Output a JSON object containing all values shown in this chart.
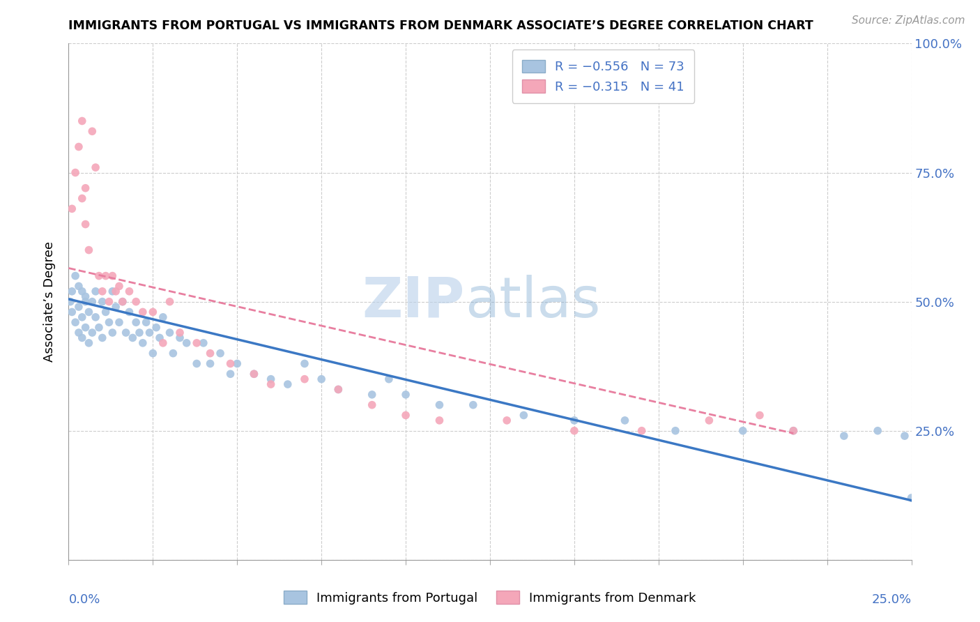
{
  "title": "IMMIGRANTS FROM PORTUGAL VS IMMIGRANTS FROM DENMARK ASSOCIATE’S DEGREE CORRELATION CHART",
  "source": "Source: ZipAtlas.com",
  "ylabel": "Associate’s Degree",
  "color_portugal": "#a8c4e0",
  "color_denmark": "#f4a7b9",
  "color_portugal_line": "#3b78c4",
  "color_denmark_line": "#e87fa0",
  "watermark_zip": "ZIP",
  "watermark_atlas": "atlas",
  "xlim": [
    0.0,
    0.25
  ],
  "ylim": [
    0.0,
    1.0
  ],
  "portugal_x": [
    0.0005,
    0.001,
    0.001,
    0.002,
    0.002,
    0.003,
    0.003,
    0.003,
    0.004,
    0.004,
    0.004,
    0.005,
    0.005,
    0.005,
    0.006,
    0.006,
    0.007,
    0.007,
    0.008,
    0.008,
    0.009,
    0.01,
    0.01,
    0.011,
    0.012,
    0.013,
    0.013,
    0.014,
    0.015,
    0.016,
    0.017,
    0.018,
    0.019,
    0.02,
    0.021,
    0.022,
    0.023,
    0.024,
    0.025,
    0.026,
    0.027,
    0.028,
    0.03,
    0.031,
    0.033,
    0.035,
    0.038,
    0.04,
    0.042,
    0.045,
    0.048,
    0.05,
    0.055,
    0.06,
    0.065,
    0.07,
    0.075,
    0.08,
    0.09,
    0.095,
    0.1,
    0.11,
    0.12,
    0.135,
    0.15,
    0.165,
    0.18,
    0.2,
    0.215,
    0.23,
    0.24,
    0.248,
    0.25
  ],
  "portugal_y": [
    0.5,
    0.52,
    0.48,
    0.55,
    0.46,
    0.53,
    0.49,
    0.44,
    0.52,
    0.47,
    0.43,
    0.51,
    0.45,
    0.5,
    0.48,
    0.42,
    0.5,
    0.44,
    0.47,
    0.52,
    0.45,
    0.5,
    0.43,
    0.48,
    0.46,
    0.52,
    0.44,
    0.49,
    0.46,
    0.5,
    0.44,
    0.48,
    0.43,
    0.46,
    0.44,
    0.42,
    0.46,
    0.44,
    0.4,
    0.45,
    0.43,
    0.47,
    0.44,
    0.4,
    0.43,
    0.42,
    0.38,
    0.42,
    0.38,
    0.4,
    0.36,
    0.38,
    0.36,
    0.35,
    0.34,
    0.38,
    0.35,
    0.33,
    0.32,
    0.35,
    0.32,
    0.3,
    0.3,
    0.28,
    0.27,
    0.27,
    0.25,
    0.25,
    0.25,
    0.24,
    0.25,
    0.24,
    0.12
  ],
  "denmark_x": [
    0.001,
    0.002,
    0.003,
    0.004,
    0.004,
    0.005,
    0.005,
    0.006,
    0.007,
    0.008,
    0.009,
    0.01,
    0.011,
    0.012,
    0.013,
    0.014,
    0.015,
    0.016,
    0.018,
    0.02,
    0.022,
    0.025,
    0.028,
    0.03,
    0.033,
    0.038,
    0.042,
    0.048,
    0.055,
    0.06,
    0.07,
    0.08,
    0.09,
    0.1,
    0.11,
    0.13,
    0.15,
    0.17,
    0.19,
    0.205,
    0.215
  ],
  "denmark_y": [
    0.68,
    0.75,
    0.8,
    0.85,
    0.7,
    0.65,
    0.72,
    0.6,
    0.83,
    0.76,
    0.55,
    0.52,
    0.55,
    0.5,
    0.55,
    0.52,
    0.53,
    0.5,
    0.52,
    0.5,
    0.48,
    0.48,
    0.42,
    0.5,
    0.44,
    0.42,
    0.4,
    0.38,
    0.36,
    0.34,
    0.35,
    0.33,
    0.3,
    0.28,
    0.27,
    0.27,
    0.25,
    0.25,
    0.27,
    0.28,
    0.25
  ],
  "pt_line_x": [
    0.0,
    0.25
  ],
  "pt_line_y": [
    0.505,
    0.115
  ],
  "dk_line_x": [
    0.0,
    0.215
  ],
  "dk_line_y": [
    0.565,
    0.245
  ]
}
